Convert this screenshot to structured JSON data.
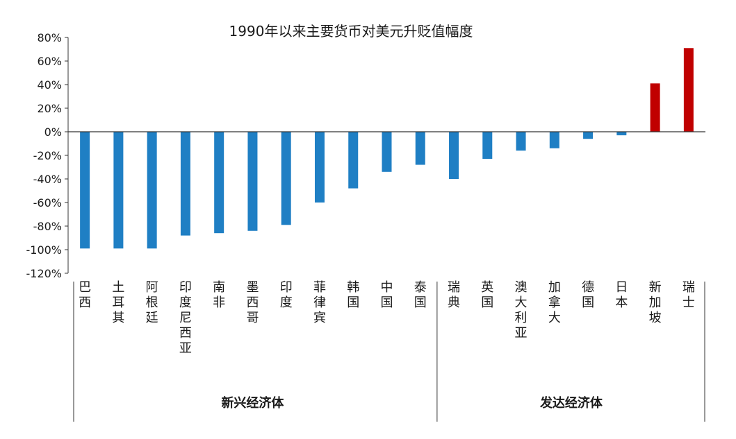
{
  "chart_data": {
    "type": "bar",
    "title": "1990年以来主要货币对美元升贬值幅度",
    "xlabel": "",
    "ylabel": "",
    "ylim": [
      -120,
      80
    ],
    "yticks": [
      80,
      60,
      40,
      20,
      0,
      -20,
      -40,
      -60,
      -80,
      -100,
      -120
    ],
    "ytick_labels": [
      "80%",
      "60%",
      "40%",
      "20%",
      "0%",
      "-20%",
      "-40%",
      "-60%",
      "-80%",
      "-100%",
      "-120%"
    ],
    "categories": [
      "巴西",
      "土耳其",
      "阿根廷",
      "印度尼西亚",
      "南非",
      "墨西哥",
      "印度",
      "菲律宾",
      "韩国",
      "中国",
      "泰国",
      "瑞典",
      "英国",
      "澳大利亚",
      "加拿大",
      "德国",
      "日本",
      "新加坡",
      "瑞士"
    ],
    "values": [
      -99,
      -99,
      -99,
      -88,
      -86,
      -84,
      -79,
      -60,
      -48,
      -34,
      -28,
      -40,
      -23,
      -16,
      -14,
      -6,
      -3,
      41,
      71
    ],
    "groups": [
      {
        "label": "新兴经济体",
        "count": 11
      },
      {
        "label": "发达经济体",
        "count": 8
      }
    ],
    "colors": {
      "negative": "#1f7fc4",
      "positive": "#c00000"
    },
    "grid": false,
    "legend": "none"
  }
}
